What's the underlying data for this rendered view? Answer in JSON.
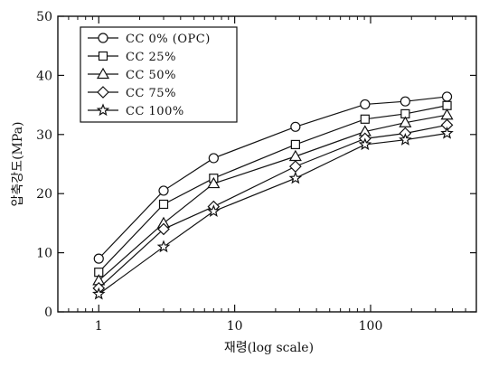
{
  "chart_data": {
    "type": "line",
    "xscale": "log",
    "xlabel": "재령(log scale)",
    "ylabel": "압축강도(MPa)",
    "xlim": [
      0.5,
      600
    ],
    "ylim": [
      0,
      50
    ],
    "xticks": [
      1,
      10,
      100
    ],
    "xtick_labels": [
      "1",
      "10",
      "100"
    ],
    "yticks": [
      0,
      10,
      20,
      30,
      40,
      50
    ],
    "ytick_labels": [
      "0",
      "10",
      "20",
      "30",
      "40",
      "50"
    ],
    "grid": false,
    "legend_position": "top-left",
    "x": [
      1,
      3,
      7,
      28,
      91,
      180,
      365
    ],
    "series": [
      {
        "name": "CC 0% (OPC)",
        "marker": "circle",
        "values": [
          9.0,
          20.5,
          26.0,
          31.3,
          35.1,
          35.6,
          36.4
        ]
      },
      {
        "name": "CC 25%",
        "marker": "square",
        "values": [
          6.7,
          18.2,
          22.6,
          28.3,
          32.6,
          33.5,
          34.9
        ]
      },
      {
        "name": "CC 50%",
        "marker": "triangle",
        "values": [
          5.3,
          15.0,
          21.7,
          26.3,
          30.5,
          32.0,
          33.3
        ]
      },
      {
        "name": "CC 75%",
        "marker": "diamond",
        "values": [
          4.0,
          14.0,
          17.8,
          24.6,
          29.3,
          30.2,
          31.6
        ]
      },
      {
        "name": "CC 100%",
        "marker": "star",
        "values": [
          3.0,
          11.0,
          17.0,
          22.6,
          28.3,
          29.1,
          30.2
        ]
      }
    ]
  }
}
